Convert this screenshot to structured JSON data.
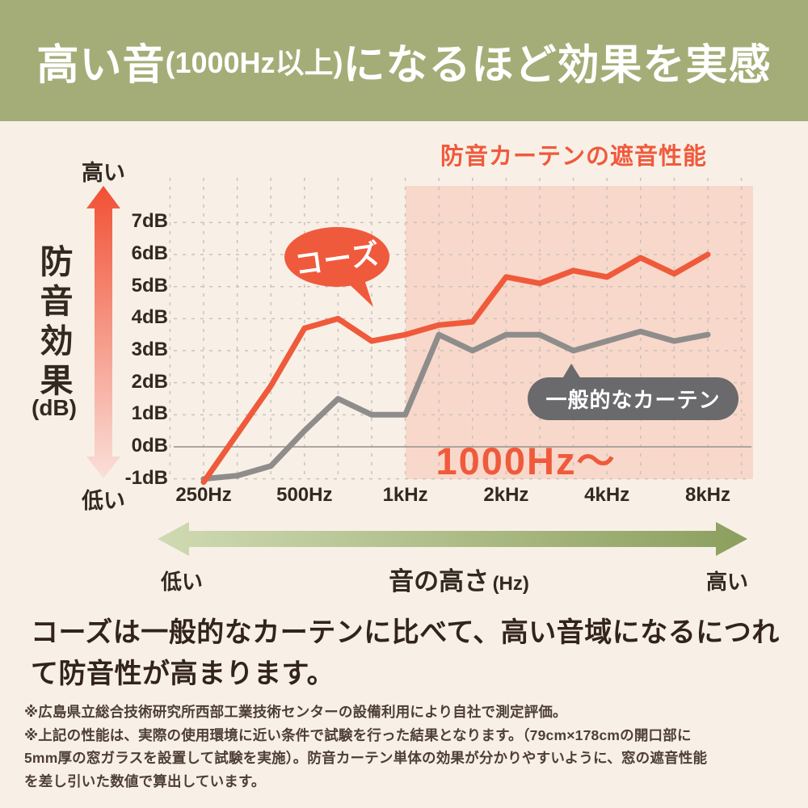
{
  "header": {
    "title_main": "高い音",
    "title_paren": "(1000Hz以上)",
    "title_rest": "になるほど効果を実感"
  },
  "chart": {
    "title": "防音カーテンの遮音性能",
    "y_axis_high": "高い",
    "y_axis_low": "低い",
    "y_axis_title": "防音効果",
    "y_axis_unit": "(dB)",
    "cose_bubble": "コーズ",
    "generic_bubble": "一般的なカーテン",
    "highlight_label": "1000Hz〜"
  },
  "chart_data": {
    "type": "line",
    "x_frequencies_hz": [
      250,
      315,
      400,
      500,
      630,
      800,
      1000,
      1250,
      1600,
      2000,
      2500,
      3150,
      4000,
      5000,
      6300,
      8000
    ],
    "x_tick_labels": [
      "250Hz",
      "500Hz",
      "1kHz",
      "2kHz",
      "4kHz",
      "8kHz"
    ],
    "y_tick_labels": [
      "7dB",
      "6dB",
      "5dB",
      "4dB",
      "3dB",
      "2dB",
      "1dB",
      "0dB",
      "-1dB"
    ],
    "xlabel": "音の高さ (Hz)",
    "ylabel": "防音効果 (dB)",
    "ylim": [
      -1,
      7
    ],
    "grid": true,
    "series": [
      {
        "name": "コーズ",
        "color": "#ef5a3b",
        "values": [
          -1.1,
          0.4,
          1.9,
          3.7,
          4.0,
          3.3,
          3.5,
          3.8,
          3.9,
          5.3,
          5.1,
          5.5,
          5.3,
          5.9,
          5.4,
          6.0
        ]
      },
      {
        "name": "一般的なカーテン",
        "color": "#8e8d8c",
        "values": [
          -1.0,
          -0.9,
          -0.6,
          0.5,
          1.5,
          1.0,
          1.0,
          3.5,
          3.0,
          3.5,
          3.5,
          3.0,
          3.3,
          3.6,
          3.3,
          3.5
        ]
      }
    ],
    "highlight_region": {
      "label": "1000Hz〜",
      "from_hz": 1000,
      "to_hz": 8000
    }
  },
  "x_axis_arrow": {
    "low": "低い",
    "title": "音の高さ",
    "unit": "(Hz)",
    "high": "高い"
  },
  "description": [
    "コーズは一般的なカーテンに比べて、高い音域になるにつれ",
    "て防音性が高まります。"
  ],
  "footnotes": [
    "※広島県立総合技術研究所西部工業技術センターの設備利用により自社で測定評価。",
    "※上記の性能は、実際の使用環境に近い条件で試験を行った結果となります。（79cm×178cmの開口部に",
    "5mm厚の窓ガラスを設置して試験を実施）。防音カーテン単体の効果が分かりやすいように、窓の遮音性能",
    "を差し引いた数値で算出しています。"
  ],
  "colors": {
    "header_bg": "#a4ad77",
    "page_bg": "#f8f0e7",
    "accent_red": "#f05a3c",
    "line_red": "#ef5a3b",
    "line_gray": "#8e8d8c",
    "bubble_gray": "#6a6a6c",
    "highlight_pink": "#f8d8ca",
    "text_dark": "#32291f",
    "description_text": "#32231c",
    "footnote_text": "#4e3e35",
    "grid_line": "#c9c3bc",
    "zero_line": "#a39d96",
    "red_arrow_from": "#f15034",
    "red_arrow_to": "#fadfd8",
    "green_arrow_from": "#cfdab2",
    "green_arrow_to": "#8c9f5e"
  }
}
